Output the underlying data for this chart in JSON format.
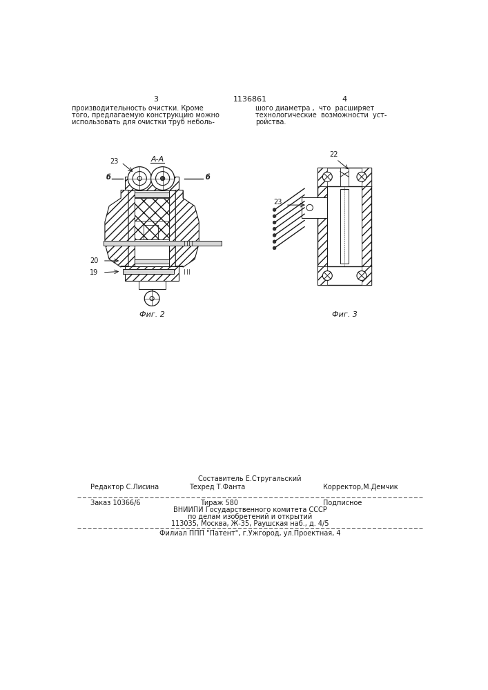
{
  "page_width": 7.07,
  "page_height": 10.0,
  "bg_color": "#ffffff",
  "text_color": "#1a1a1a",
  "header_left_num": "3",
  "header_center": "1136861",
  "header_right_num": "4",
  "col_left_text": [
    "производительность очистки. Кроме",
    "того, предлагаемую конструкцию можно",
    "использовать для очистки труб неболь-"
  ],
  "col_right_text": [
    "шого диаметра ,  что  расширяет",
    "технологические  возможности  уст-",
    "ройства."
  ],
  "fig2_label": "Фиг. 2",
  "fig3_label": "Фиг. 3",
  "label_AA": "A-A",
  "label_b": "б",
  "label_20": "20",
  "label_19": "19",
  "label_22": "22",
  "label_23": "23",
  "footer_sestavitel": "Составитель Е.Стругальский",
  "footer_redaktor": "Редактор С.Лисина",
  "footer_tekhred": "Техред Т.Фанта",
  "footer_korrektor": "Корректор,М.Демчик",
  "footer_zakaz": "Заказ 10366/6",
  "footer_tirazh": "Тираж 580",
  "footer_podpisnoe": "Подписное",
  "footer_vnipi": "ВНИИПИ Государственного комитета СССР",
  "footer_podelu": "по делам изобретений и открытий",
  "footer_address": "113035, Москва, Ж-35, Раушская наб., д. 4/5",
  "footer_filial": "Филиал ППП \"Патент\", г.Ужгород, ул.Проектная, 4"
}
